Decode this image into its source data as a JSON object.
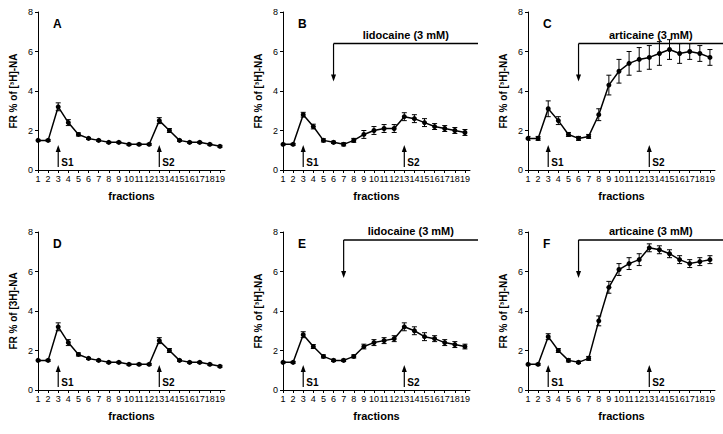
{
  "chart_data": [
    {
      "type": "line",
      "title": "A",
      "x_label": "fractions",
      "y_label": "FR % of [³H]-NA",
      "x": [
        1,
        2,
        3,
        4,
        5,
        6,
        7,
        8,
        9,
        10,
        11,
        12,
        13,
        14,
        15,
        16,
        17,
        18,
        19
      ],
      "values": [
        1.5,
        1.5,
        3.2,
        2.4,
        1.8,
        1.6,
        1.5,
        1.4,
        1.4,
        1.3,
        1.3,
        1.3,
        2.5,
        2.0,
        1.5,
        1.4,
        1.4,
        1.3,
        1.2
      ],
      "errors": [
        0.05,
        0.05,
        0.2,
        0.15,
        0.08,
        0.05,
        0.05,
        0.05,
        0.05,
        0.05,
        0.05,
        0.05,
        0.15,
        0.1,
        0.05,
        0.05,
        0.05,
        0.05,
        0.05
      ],
      "color": "#000000",
      "marker": "circle",
      "xlim": [
        1,
        19.5
      ],
      "xticks": [
        1,
        2,
        3,
        4,
        5,
        6,
        7,
        8,
        9,
        10,
        11,
        12,
        13,
        14,
        15,
        16,
        17,
        18,
        19
      ],
      "ylim": [
        0,
        8
      ],
      "yticks": [
        0,
        2,
        4,
        6,
        8
      ],
      "grid": false,
      "annotations": [
        {
          "text": "S1",
          "x": 3
        },
        {
          "text": "S2",
          "x": 13
        }
      ]
    },
    {
      "type": "line",
      "title": "B",
      "x_label": "fractions",
      "y_label": "FR % of [³H]-NA",
      "x": [
        1,
        2,
        3,
        4,
        5,
        6,
        7,
        8,
        9,
        10,
        11,
        12,
        13,
        14,
        15,
        16,
        17,
        18,
        19
      ],
      "values": [
        1.3,
        1.3,
        2.8,
        2.2,
        1.5,
        1.4,
        1.3,
        1.5,
        1.8,
        2.0,
        2.1,
        2.1,
        2.7,
        2.6,
        2.4,
        2.2,
        2.1,
        2.0,
        1.9
      ],
      "errors": [
        0.05,
        0.05,
        0.12,
        0.12,
        0.08,
        0.06,
        0.08,
        0.1,
        0.2,
        0.2,
        0.2,
        0.2,
        0.2,
        0.2,
        0.2,
        0.15,
        0.15,
        0.15,
        0.15
      ],
      "color": "#000000",
      "marker": "circle",
      "xlim": [
        1,
        19.5
      ],
      "xticks": [
        1,
        2,
        3,
        4,
        5,
        6,
        7,
        8,
        9,
        10,
        11,
        12,
        13,
        14,
        15,
        16,
        17,
        18,
        19
      ],
      "ylim": [
        0,
        8
      ],
      "yticks": [
        0,
        2,
        4,
        6,
        8
      ],
      "grid": false,
      "annotations": [
        {
          "text": "S1",
          "x": 3
        },
        {
          "text": "S2",
          "x": 13
        },
        {
          "text": "lidocaine (3 mM)",
          "x_start": 6
        }
      ]
    },
    {
      "type": "line",
      "title": "C",
      "x_label": "fractions",
      "y_label": "FR % of [³H]-NA",
      "x": [
        1,
        2,
        3,
        4,
        5,
        6,
        7,
        8,
        9,
        10,
        11,
        12,
        13,
        14,
        15,
        16,
        17,
        18,
        19
      ],
      "values": [
        1.6,
        1.6,
        3.1,
        2.5,
        1.8,
        1.6,
        1.7,
        2.8,
        4.3,
        5.0,
        5.4,
        5.6,
        5.7,
        5.9,
        6.1,
        5.9,
        6.0,
        5.9,
        5.7
      ],
      "errors": [
        0.1,
        0.1,
        0.4,
        0.2,
        0.1,
        0.1,
        0.1,
        0.3,
        0.5,
        0.6,
        0.6,
        0.6,
        0.6,
        0.6,
        0.5,
        0.5,
        0.4,
        0.4,
        0.4
      ],
      "color": "#000000",
      "marker": "circle",
      "xlim": [
        1,
        19.5
      ],
      "xticks": [
        1,
        2,
        3,
        4,
        5,
        6,
        7,
        8,
        9,
        10,
        11,
        12,
        13,
        14,
        15,
        16,
        17,
        18,
        19
      ],
      "ylim": [
        0,
        8
      ],
      "yticks": [
        0,
        2,
        4,
        6,
        8
      ],
      "grid": false,
      "annotations": [
        {
          "text": "S1",
          "x": 3
        },
        {
          "text": "S2",
          "x": 13
        },
        {
          "text": "articaine (3 mM)",
          "x_start": 6
        }
      ]
    },
    {
      "type": "line",
      "title": "D",
      "x_label": "fractions",
      "y_label": "FR % of [3H]-NA",
      "x": [
        1,
        2,
        3,
        4,
        5,
        6,
        7,
        8,
        9,
        10,
        11,
        12,
        13,
        14,
        15,
        16,
        17,
        18,
        19
      ],
      "values": [
        1.5,
        1.5,
        3.2,
        2.4,
        1.8,
        1.6,
        1.5,
        1.4,
        1.4,
        1.3,
        1.3,
        1.3,
        2.5,
        2.0,
        1.5,
        1.4,
        1.4,
        1.3,
        1.2
      ],
      "errors": [
        0.05,
        0.05,
        0.2,
        0.15,
        0.08,
        0.05,
        0.05,
        0.05,
        0.05,
        0.05,
        0.05,
        0.05,
        0.15,
        0.1,
        0.05,
        0.05,
        0.05,
        0.05,
        0.05
      ],
      "color": "#000000",
      "marker": "circle",
      "xlim": [
        1,
        19.5
      ],
      "xticks": [
        1,
        2,
        3,
        4,
        5,
        6,
        7,
        8,
        9,
        10,
        11,
        12,
        13,
        14,
        15,
        16,
        17,
        18,
        19
      ],
      "ylim": [
        0,
        8
      ],
      "yticks": [
        0,
        2,
        4,
        6,
        8
      ],
      "grid": false,
      "annotations": [
        {
          "text": "S1",
          "x": 3
        },
        {
          "text": "S2",
          "x": 13
        }
      ]
    },
    {
      "type": "line",
      "title": "E",
      "x_label": "fractions",
      "y_label": "FR % of [³H]-NA",
      "x": [
        1,
        2,
        3,
        4,
        5,
        6,
        7,
        8,
        9,
        10,
        11,
        12,
        13,
        14,
        15,
        16,
        17,
        18,
        19
      ],
      "values": [
        1.4,
        1.4,
        2.8,
        2.2,
        1.7,
        1.5,
        1.5,
        1.7,
        2.2,
        2.4,
        2.5,
        2.6,
        3.2,
        3.0,
        2.7,
        2.6,
        2.4,
        2.3,
        2.2
      ],
      "errors": [
        0.05,
        0.05,
        0.15,
        0.1,
        0.08,
        0.06,
        0.06,
        0.08,
        0.12,
        0.15,
        0.15,
        0.15,
        0.2,
        0.2,
        0.2,
        0.15,
        0.15,
        0.15,
        0.12
      ],
      "color": "#000000",
      "marker": "circle",
      "xlim": [
        1,
        19.5
      ],
      "xticks": [
        1,
        2,
        3,
        4,
        5,
        6,
        7,
        8,
        9,
        10,
        11,
        12,
        13,
        14,
        15,
        16,
        17,
        18,
        19
      ],
      "ylim": [
        0,
        8
      ],
      "yticks": [
        0,
        2,
        4,
        6,
        8
      ],
      "grid": false,
      "annotations": [
        {
          "text": "S1",
          "x": 3
        },
        {
          "text": "S2",
          "x": 13
        },
        {
          "text": "lidocaine (3 mM)",
          "x_start": 7
        }
      ]
    },
    {
      "type": "line",
      "title": "F",
      "x_label": "fractions",
      "y_label": "FR % of [³H]-NA",
      "x": [
        1,
        2,
        3,
        4,
        5,
        6,
        7,
        8,
        9,
        10,
        11,
        12,
        13,
        14,
        15,
        16,
        17,
        18,
        19
      ],
      "values": [
        1.3,
        1.3,
        2.7,
        2.0,
        1.5,
        1.4,
        1.6,
        3.5,
        5.2,
        6.1,
        6.4,
        6.6,
        7.2,
        7.1,
        6.9,
        6.6,
        6.4,
        6.5,
        6.6
      ],
      "errors": [
        0.05,
        0.05,
        0.15,
        0.1,
        0.08,
        0.06,
        0.1,
        0.25,
        0.3,
        0.3,
        0.3,
        0.3,
        0.2,
        0.2,
        0.2,
        0.2,
        0.2,
        0.2,
        0.2
      ],
      "color": "#000000",
      "marker": "circle",
      "xlim": [
        1,
        19.5
      ],
      "xticks": [
        1,
        2,
        3,
        4,
        5,
        6,
        7,
        8,
        9,
        10,
        11,
        12,
        13,
        14,
        15,
        16,
        17,
        18,
        19
      ],
      "ylim": [
        0,
        8
      ],
      "yticks": [
        0,
        2,
        4,
        6,
        8
      ],
      "grid": false,
      "annotations": [
        {
          "text": "S1",
          "x": 3
        },
        {
          "text": "S2",
          "x": 13
        },
        {
          "text": "articaine (3 mM)",
          "x_start": 6
        }
      ]
    }
  ]
}
